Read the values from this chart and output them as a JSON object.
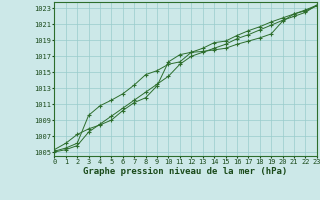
{
  "title": "Graphe pression niveau de la mer (hPa)",
  "xlabel_hours": [
    0,
    1,
    2,
    3,
    4,
    5,
    6,
    7,
    8,
    9,
    10,
    11,
    12,
    13,
    14,
    15,
    16,
    17,
    18,
    19,
    20,
    21,
    22,
    23
  ],
  "ylim": [
    1004.5,
    1023.8
  ],
  "yticks": [
    1005,
    1007,
    1009,
    1011,
    1013,
    1015,
    1017,
    1019,
    1021,
    1023
  ],
  "xlim": [
    0,
    23
  ],
  "bg_color": "#cce8e8",
  "grid_color": "#99cccc",
  "line_color": "#2d6e2d",
  "marker_color": "#2d6e2d",
  "series1": [
    1005.3,
    1006.1,
    1007.2,
    1007.9,
    1008.4,
    1009.0,
    1010.2,
    1011.2,
    1011.8,
    1013.3,
    1016.3,
    1017.2,
    1017.5,
    1017.6,
    1017.8,
    1018.0,
    1018.5,
    1018.9,
    1019.3,
    1019.8,
    1021.4,
    1022.3,
    1022.7,
    1023.3
  ],
  "series2": [
    1005.1,
    1005.5,
    1006.1,
    1009.6,
    1010.8,
    1011.5,
    1012.3,
    1013.4,
    1014.7,
    1015.2,
    1016.0,
    1016.3,
    1017.5,
    1018.0,
    1018.7,
    1018.9,
    1019.6,
    1020.2,
    1020.7,
    1021.3,
    1021.8,
    1022.3,
    1022.8,
    1023.4
  ],
  "series3": [
    1005.0,
    1005.3,
    1005.8,
    1007.5,
    1008.5,
    1009.5,
    1010.5,
    1011.5,
    1012.5,
    1013.5,
    1014.5,
    1016.0,
    1017.0,
    1017.5,
    1018.0,
    1018.5,
    1019.2,
    1019.7,
    1020.3,
    1020.9,
    1021.5,
    1022.0,
    1022.5,
    1023.4
  ],
  "title_fontsize": 6.5,
  "tick_fontsize": 5.0
}
